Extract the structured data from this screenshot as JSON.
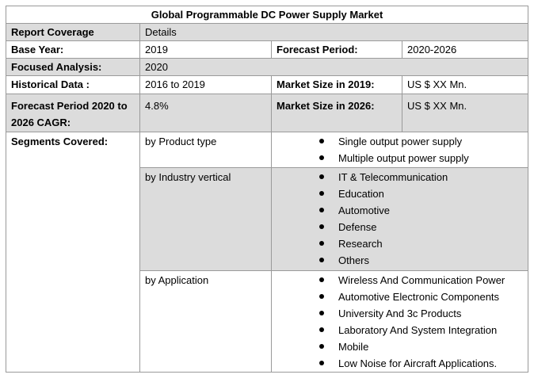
{
  "title": "Global Programmable DC Power Supply Market",
  "rows": {
    "coverage": {
      "label": "Report Coverage",
      "value": "Details"
    },
    "base_year": {
      "label": "Base Year:",
      "value": "2019",
      "label2": "Forecast Period:",
      "value2": "2020-2026"
    },
    "focused": {
      "label": "Focused Analysis:",
      "value": "2020"
    },
    "historical": {
      "label": "Historical Data :",
      "value": "2016 to 2019",
      "label2": "Market Size in 2019:",
      "value2": "US $ XX Mn."
    },
    "cagr": {
      "label": "Forecast Period 2020 to 2026 CAGR:",
      "value": "4.8%",
      "label2": "Market Size in 2026:",
      "value2": "US $ XX Mn."
    }
  },
  "segments": {
    "label": "Segments Covered:",
    "groups": [
      {
        "name": "by Product type",
        "items": [
          "Single output power supply",
          "Multiple output power supply"
        ]
      },
      {
        "name": "by Industry vertical",
        "items": [
          "IT & Telecommunication",
          "Education",
          "Automotive",
          "Defense",
          "Research",
          "Others"
        ]
      },
      {
        "name": "by Application",
        "items": [
          "Wireless And Communication Power",
          "Automotive Electronic Components",
          "University And 3c Products",
          "Laboratory And System Integration",
          "Mobile",
          "Low Noise for Aircraft Applications."
        ]
      }
    ]
  }
}
